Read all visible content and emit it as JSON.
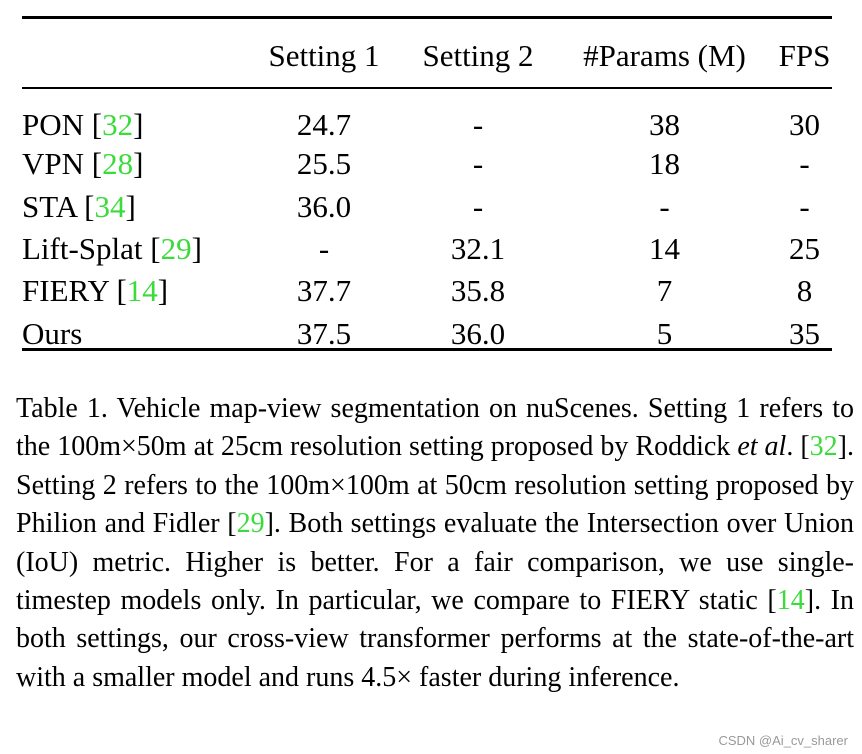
{
  "table": {
    "headers": [
      "",
      "Setting 1",
      "Setting 2",
      "#Params (M)",
      "FPS"
    ],
    "rows": [
      {
        "method": "PON",
        "ref": "32",
        "s1": "24.7",
        "s2": "-",
        "params": "38",
        "fps": "30"
      },
      {
        "method": "VPN",
        "ref": "28",
        "s1": "25.5",
        "s2": "-",
        "params": "18",
        "fps": "-"
      },
      {
        "method": "STA",
        "ref": "34",
        "s1": "36.0",
        "s2": "-",
        "params": "-",
        "fps": "-"
      },
      {
        "method": "Lift-Splat",
        "ref": "29",
        "s1": "-",
        "s2": "32.1",
        "params": "14",
        "fps": "25"
      },
      {
        "method": "FIERY",
        "ref": "14",
        "s1": "37.7",
        "s2": "35.8",
        "params": "7",
        "fps": "8"
      },
      {
        "method": "Ours",
        "ref": "",
        "s1": "37.5",
        "s2": "36.0",
        "params": "5",
        "fps": "35"
      }
    ]
  },
  "caption": {
    "t1": "Table 1.  Vehicle map-view segmentation on nuScenes.  Setting 1 refers to the 100m×50m at 25cm resolution setting proposed by Roddick ",
    "etal": "et al",
    "t2": ". [",
    "ref1": "32",
    "t3": "].  Setting 2 refers to the 100m×100m at 50cm resolution setting proposed by Philion and Fidler [",
    "ref2": "29",
    "t4": "]. Both settings evaluate the Intersection over Union (IoU) metric. Higher is better.  For a fair comparison, we use single-timestep models only.  In particular, we compare to FIERY static [",
    "ref3": "14",
    "t5": "].  In both settings, our cross-view transformer performs at the state-of-the-art with a smaller model and runs 4.5× faster during inference."
  },
  "watermark": "CSDN @Ai_cv_sharer",
  "colors": {
    "citation": "#3adb3a",
    "text": "#000000",
    "watermark": "#9a9a9a"
  }
}
